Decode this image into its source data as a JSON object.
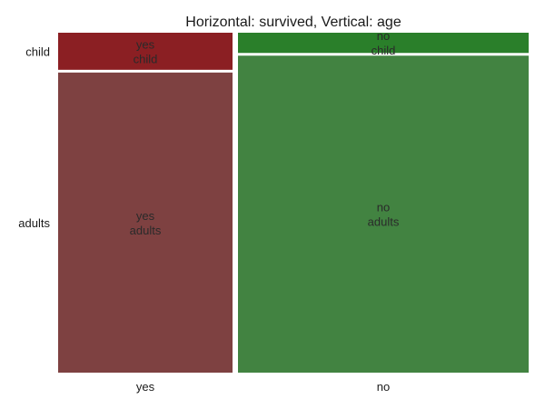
{
  "chart_data": {
    "type": "mosaic",
    "title": "Horizontal: survived, Vertical: age",
    "x_variable": "survived",
    "y_variable": "age",
    "x_categories": [
      "yes",
      "no"
    ],
    "y_categories": [
      "child",
      "adults"
    ],
    "column_widths": [
      0.375,
      0.625
    ],
    "cells": [
      {
        "x": "yes",
        "y": "child",
        "fraction_of_column": 0.11,
        "label_top": "yes",
        "label_bottom": "child",
        "color": "#8b1f23"
      },
      {
        "x": "yes",
        "y": "adults",
        "fraction_of_column": 0.89,
        "label_top": "yes",
        "label_bottom": "adults",
        "color": "#7e4141"
      },
      {
        "x": "no",
        "y": "child",
        "fraction_of_column": 0.06,
        "label_top": "no",
        "label_bottom": "child",
        "color": "#2a7f2a"
      },
      {
        "x": "no",
        "y": "adults",
        "fraction_of_column": 0.94,
        "label_top": "no",
        "label_bottom": "adults",
        "color": "#428341"
      }
    ],
    "grid": false,
    "legend": "none"
  }
}
